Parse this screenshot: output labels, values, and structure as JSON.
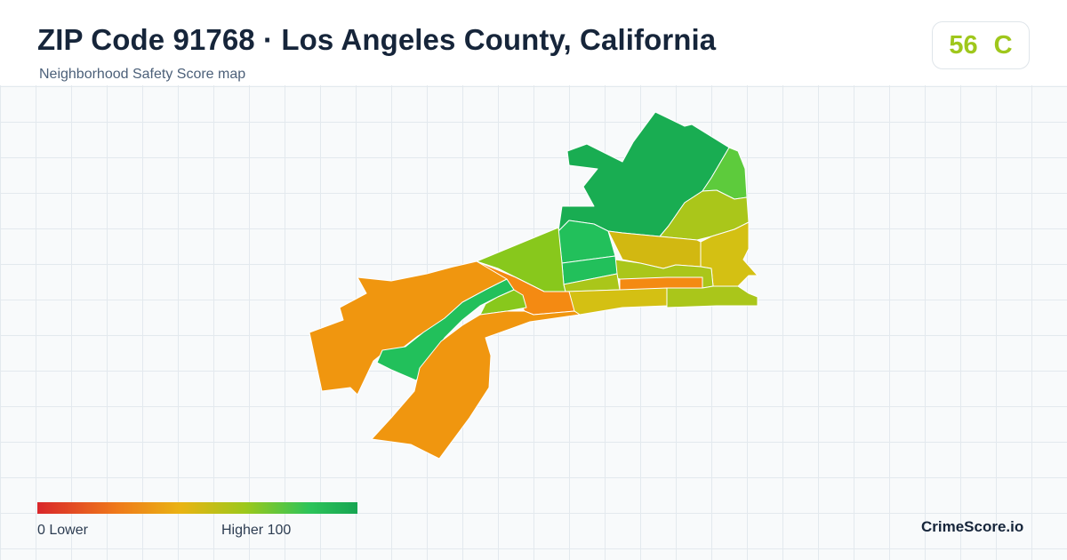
{
  "header": {
    "title": "ZIP Code 91768 · Los Angeles County, California",
    "subtitle": "Neighborhood Safety Score map"
  },
  "score": {
    "value": "56",
    "grade": "C",
    "color": "#9fc71c"
  },
  "map": {
    "region": "ZIP Code 91768",
    "color_scale": [
      "#d9262a",
      "#ef7a1a",
      "#e9b413",
      "#9cc81b",
      "#2dc45a",
      "#17a552"
    ],
    "fills": {
      "dark-green": "#19ad52",
      "green": "#22c05b",
      "light-green": "#5dcb3c",
      "yellow-green": "#88c81c",
      "olive": "#aac61a",
      "mustard": "#d2b811",
      "gold": "#d4c013",
      "orange": "#f0960f",
      "deep-orange": "#f48a12"
    }
  },
  "legend": {
    "left_label": "0  Lower",
    "right_label": "Higher  100"
  },
  "brand": {
    "name": "CrimeScore.io"
  }
}
